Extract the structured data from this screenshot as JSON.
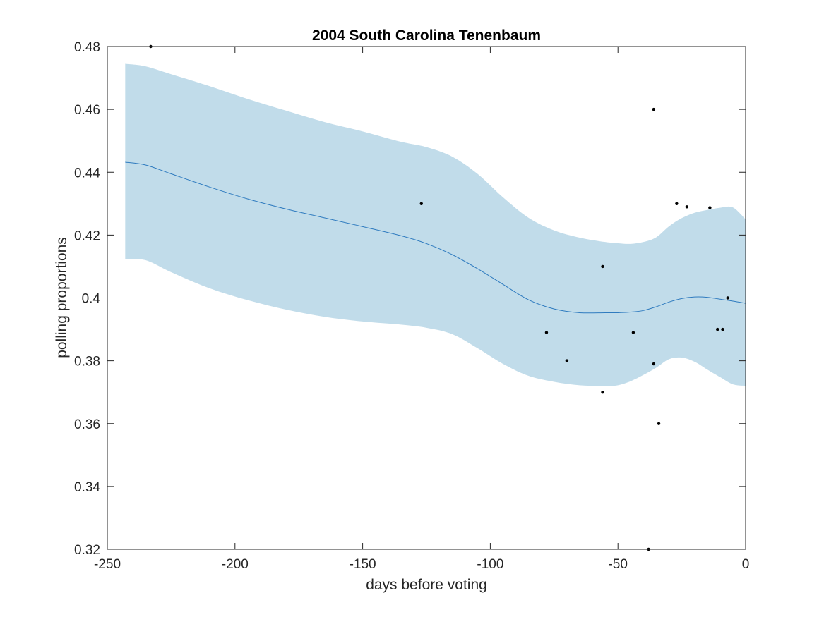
{
  "chart_data": {
    "type": "line",
    "title": "2004 South Carolina Tenenbaum",
    "xlabel": "days before voting",
    "ylabel": "polling proportions",
    "xlim": [
      -250,
      0
    ],
    "ylim": [
      0.32,
      0.48
    ],
    "xticks": [
      -250,
      -200,
      -150,
      -100,
      -50,
      0
    ],
    "xtick_labels": [
      "-250",
      "-200",
      "-150",
      "-100",
      "-50",
      "0"
    ],
    "yticks": [
      0.32,
      0.34,
      0.36,
      0.38,
      0.4,
      0.42,
      0.44,
      0.46,
      0.48
    ],
    "ytick_labels": [
      "0.32",
      "0.34",
      "0.36",
      "0.38",
      "0.4",
      "0.42",
      "0.44",
      "0.46",
      "0.48"
    ],
    "grid": false,
    "colors": {
      "band": "#c1dcea",
      "line": "#2f7bbf",
      "points": "#000000",
      "axes": "#262626"
    },
    "mean": {
      "x": [
        -243,
        -235,
        -225,
        -210,
        -195,
        -180,
        -165,
        -150,
        -135,
        -125,
        -115,
        -105,
        -95,
        -85,
        -75,
        -65,
        -55,
        -50,
        -45,
        -40,
        -35,
        -30,
        -25,
        -20,
        -15,
        -10,
        -5,
        0
      ],
      "y": [
        0.4432,
        0.4423,
        0.4395,
        0.4353,
        0.4315,
        0.4283,
        0.4255,
        0.4227,
        0.4198,
        0.4173,
        0.4138,
        0.4093,
        0.4043,
        0.3994,
        0.3965,
        0.3953,
        0.3953,
        0.3953,
        0.3955,
        0.396,
        0.3972,
        0.3987,
        0.3998,
        0.4003,
        0.4002,
        0.3996,
        0.399,
        0.3983
      ]
    },
    "upper": {
      "x": [
        -243,
        -235,
        -225,
        -210,
        -195,
        -180,
        -165,
        -150,
        -135,
        -125,
        -115,
        -105,
        -95,
        -85,
        -75,
        -65,
        -55,
        -50,
        -45,
        -40,
        -35,
        -30,
        -25,
        -20,
        -15,
        -10,
        -5,
        0
      ],
      "y": [
        0.4745,
        0.4737,
        0.4712,
        0.4674,
        0.4633,
        0.4596,
        0.456,
        0.453,
        0.4497,
        0.448,
        0.445,
        0.4395,
        0.432,
        0.4255,
        0.4215,
        0.4192,
        0.4178,
        0.4174,
        0.4172,
        0.4178,
        0.4193,
        0.4228,
        0.4254,
        0.4271,
        0.428,
        0.4287,
        0.4288,
        0.425
      ]
    },
    "lower": {
      "x": [
        -243,
        -235,
        -225,
        -210,
        -195,
        -180,
        -165,
        -150,
        -135,
        -125,
        -115,
        -105,
        -95,
        -85,
        -75,
        -65,
        -55,
        -50,
        -45,
        -40,
        -35,
        -30,
        -25,
        -20,
        -15,
        -10,
        -5,
        0
      ],
      "y": [
        0.4124,
        0.412,
        0.4082,
        0.4031,
        0.3993,
        0.3963,
        0.394,
        0.3925,
        0.3915,
        0.3905,
        0.3885,
        0.384,
        0.379,
        0.3752,
        0.3733,
        0.3722,
        0.372,
        0.3722,
        0.3735,
        0.3755,
        0.3778,
        0.3805,
        0.381,
        0.3797,
        0.3772,
        0.3748,
        0.3725,
        0.372
      ]
    },
    "points": {
      "x": [
        -233,
        -127,
        -78,
        -70,
        -56,
        -56,
        -44,
        -38,
        -36,
        -36,
        -34,
        -27,
        -23,
        -14,
        -11,
        -9,
        -7
      ],
      "y": [
        0.48,
        0.43,
        0.389,
        0.38,
        0.41,
        0.37,
        0.389,
        0.32,
        0.46,
        0.379,
        0.36,
        0.43,
        0.429,
        0.4287,
        0.39,
        0.39,
        0.4
      ]
    }
  }
}
